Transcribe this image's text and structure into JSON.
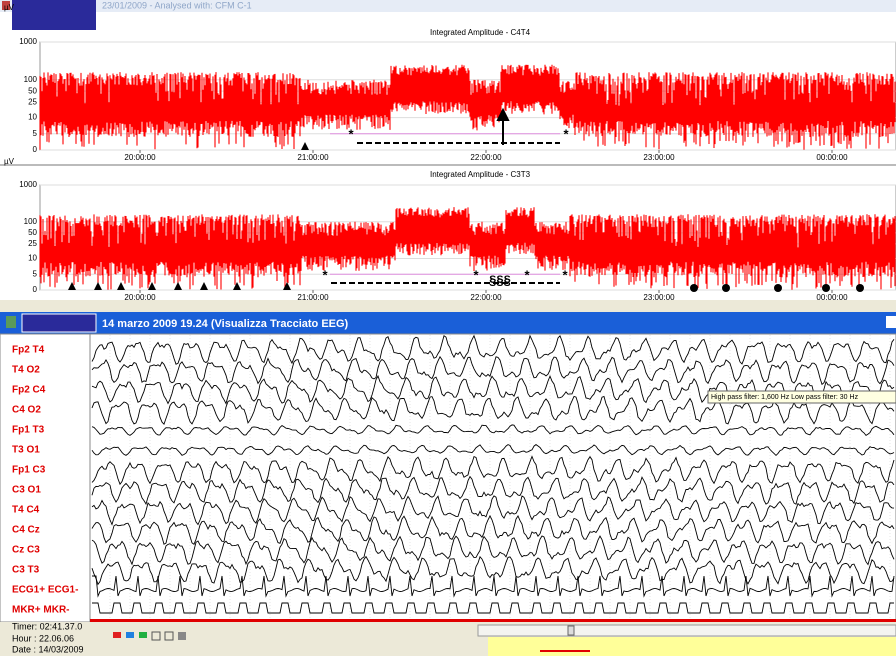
{
  "window_title": "23/01/2009 - Analysed with: CFM C-1",
  "aeeg": [
    {
      "unit": "µV",
      "title": "Integrated Amplitude - C4T4",
      "yticks": [
        1000,
        100,
        50,
        25,
        10,
        5,
        0
      ],
      "times": [
        "20:00:00",
        "21:00:00",
        "22:00:00",
        "23:00:00",
        "00:00:00"
      ],
      "annotations": [
        "*",
        "*"
      ]
    },
    {
      "unit": "µV",
      "title": "Integrated Amplitude - C3T3",
      "yticks": [
        1000,
        100,
        50,
        25,
        10,
        5,
        0
      ],
      "times": [
        "20:00:00",
        "21:00:00",
        "22:00:00",
        "23:00:00",
        "00:00:00"
      ],
      "annotations": [
        "*",
        "*",
        "§§§",
        "*",
        "*"
      ]
    }
  ],
  "eeg": {
    "title": "14 marzo 2009 19.24 (Visualizza Tracciato EEG)",
    "channels": [
      "Fp2 T4",
      "T4 O2",
      "Fp2 C4",
      "C4 O2",
      "Fp1 T3",
      "T3 O1",
      "Fp1 C3",
      "C3 O1",
      "T4 C4",
      "C4 Cz",
      "Cz C3",
      "C3 T3",
      "ECG1+ ECG1-",
      "MKR+ MKR-"
    ],
    "filter_info": "High pass filter: 1,600 Hz   Low pass filter: 30 Hz"
  },
  "status": {
    "timer": "Timer: 02:41.37.0",
    "hour": "Hour : 22.06.06",
    "date": "Date : 14/03/2009"
  }
}
